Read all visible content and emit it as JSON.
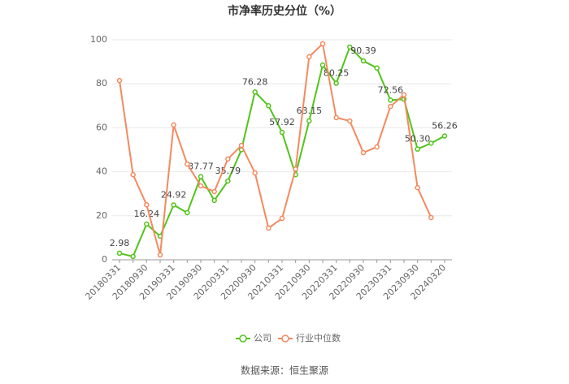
{
  "chart_data": {
    "type": "line",
    "title": "市净率历史分位（%）",
    "categories": [
      "20180331",
      null,
      "20180930",
      null,
      "20190331",
      null,
      "20190930",
      null,
      "20200331",
      null,
      "20200930",
      null,
      "20210331",
      null,
      "20210930",
      null,
      "20220331",
      null,
      "20220930",
      null,
      "20230331",
      null,
      "20230930",
      null,
      "20240320"
    ],
    "series": [
      {
        "name": "公司",
        "color": "#52c41a",
        "values": [
          2.98,
          1.5,
          16.24,
          10.7,
          24.92,
          21.4,
          37.77,
          27,
          35.79,
          50,
          76.28,
          70,
          57.92,
          38.7,
          63.15,
          88.5,
          80.25,
          96.7,
          90.39,
          87.2,
          72.56,
          73,
          50.3,
          53,
          56.26
        ],
        "value_labels": [
          "2.98",
          null,
          "16.24",
          null,
          "24.92",
          null,
          "37.77",
          null,
          "35.79",
          null,
          "76.28",
          null,
          "57.92",
          null,
          "63.15",
          null,
          "80.25",
          null,
          "90.39",
          null,
          "72.56",
          null,
          "50.30",
          null,
          "56.26"
        ]
      },
      {
        "name": "行业中位数",
        "color": "#f4895f",
        "values": [
          81.5,
          38.7,
          25,
          2.2,
          61.3,
          43.5,
          33.6,
          31,
          45.8,
          52,
          39.5,
          14.4,
          18.8,
          41.3,
          92.3,
          98.2,
          64.6,
          63.1,
          48.7,
          51.3,
          69.7,
          75,
          32.8,
          19.2,
          null
        ]
      }
    ],
    "ylim": [
      0,
      100
    ],
    "yticks": [
      0,
      20,
      40,
      60,
      80,
      100
    ],
    "grid": true,
    "source": "数据来源：恒生聚源"
  }
}
